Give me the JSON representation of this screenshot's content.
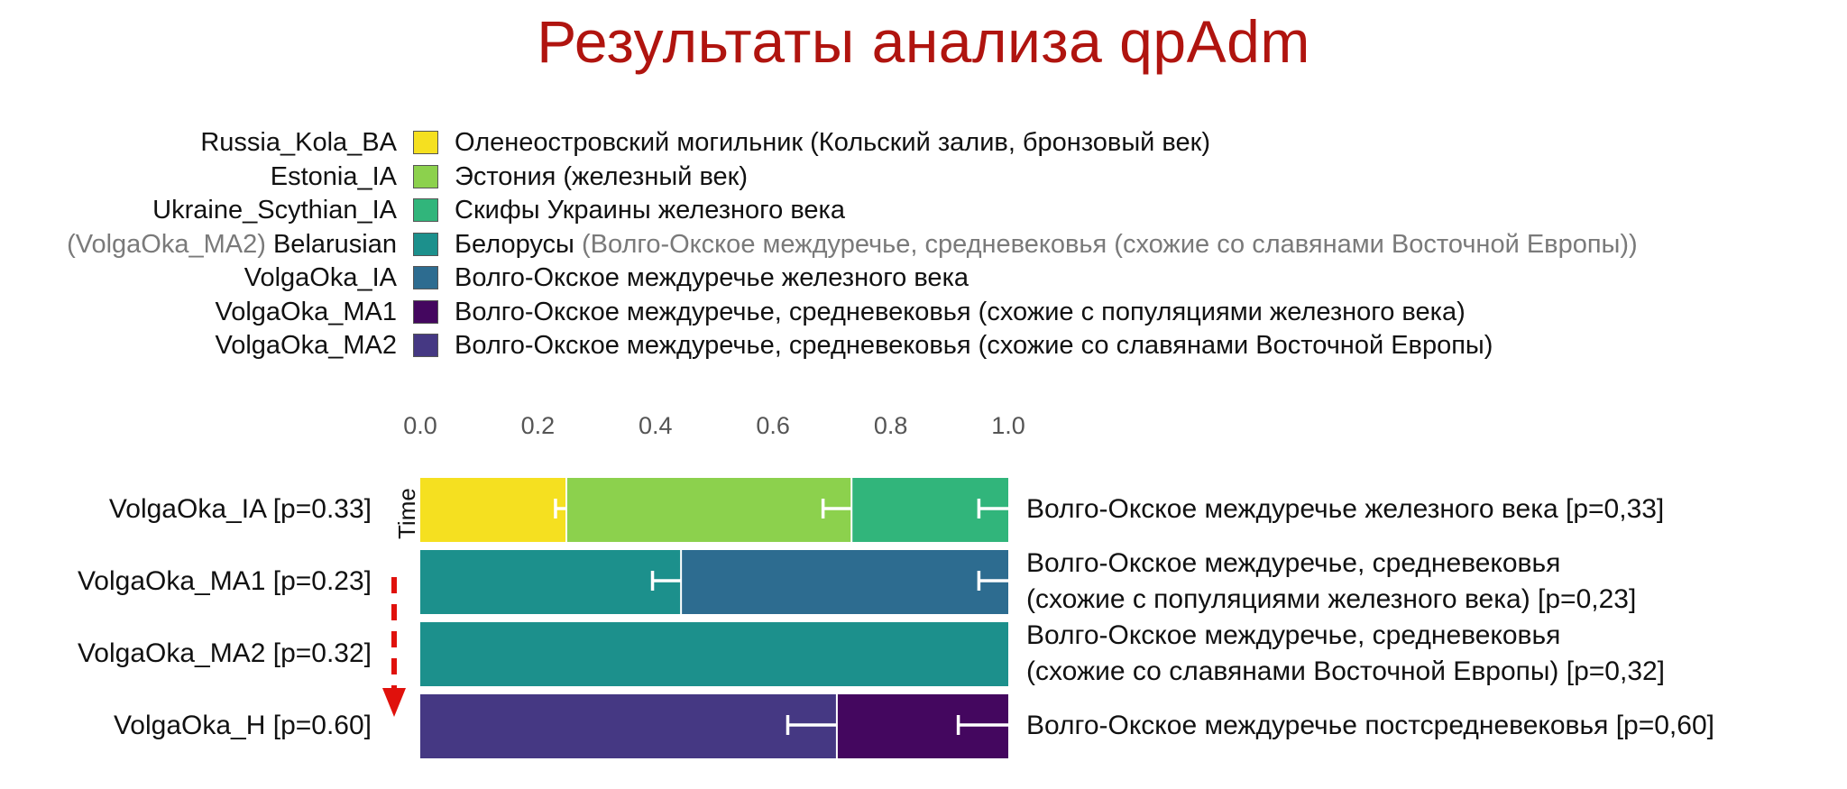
{
  "title": "Результаты анализа qpAdm",
  "legend": [
    {
      "prefix": "",
      "code": "Russia_Kola_BA",
      "color": "#f5e020",
      "desc": "Оленеостровский могильник (Кольский залив, бронзовый век)",
      "extra": ""
    },
    {
      "prefix": "",
      "code": "Estonia_IA",
      "color": "#8cd14d",
      "desc": "Эстония (железный век)",
      "extra": ""
    },
    {
      "prefix": "",
      "code": "Ukraine_Scythian_IA",
      "color": "#31b57b",
      "desc": "Скифы Украины железного века",
      "extra": ""
    },
    {
      "prefix": "(VolgaOka_MA2)",
      "code": "Belarusian",
      "color": "#1c908c",
      "desc": "Белорусы",
      "extra": "(Волго-Окское междуречье, средневековья (схожие со славянами Восточной Европы))"
    },
    {
      "prefix": "",
      "code": "VolgaOka_IA",
      "color": "#2d6c90",
      "desc": "Волго-Окское междуречье железного века",
      "extra": ""
    },
    {
      "prefix": "",
      "code": "VolgaOka_MA1",
      "color": "#44075f",
      "desc": "Волго-Окское междуречье, средневековья (схожие с популяциями железного века)",
      "extra": ""
    },
    {
      "prefix": "",
      "code": "VolgaOka_MA2",
      "color": "#453883",
      "desc": "Волго-Окское междуречье, средневековья (схожие со славянами Восточной Европы)",
      "extra": ""
    }
  ],
  "time_label": "Time",
  "chart_data": {
    "type": "bar",
    "orientation": "horizontal-stacked",
    "xlim": [
      0,
      1.0
    ],
    "ticks": [
      "0.0",
      "0.2",
      "0.4",
      "0.6",
      "0.8",
      "1.0"
    ],
    "tick_values": [
      0,
      0.2,
      0.4,
      0.6,
      0.8,
      1.0
    ],
    "rows": [
      {
        "label": "VolgaOka_IA [p=0.33]",
        "description": [
          "Волго-Окское междуречье железного века [p=0,33]"
        ],
        "segments": [
          {
            "source": "Russia_Kola_BA",
            "value": 0.25,
            "error": 0.02
          },
          {
            "source": "Estonia_IA",
            "value": 0.485,
            "error": 0.05
          },
          {
            "source": "Ukraine_Scythian_IA",
            "value": 0.265,
            "error": 0.05
          }
        ]
      },
      {
        "label": "VolgaOka_MA1 [p=0.23]",
        "description": [
          "Волго-Окское междуречье, средневековья",
          "(схожие с популяциями железного века) [p=0,23]"
        ],
        "segments": [
          {
            "source": "Belarusian",
            "value": 0.445,
            "error": 0.05
          },
          {
            "source": "VolgaOka_IA",
            "value": 0.555,
            "error": 0.05
          }
        ]
      },
      {
        "label": "VolgaOka_MA2 [p=0.32]",
        "description": [
          "Волго-Окское междуречье, средневековья",
          "(схожие со славянами Восточной Европы) [p=0,32]"
        ],
        "segments": [
          {
            "source": "Belarusian",
            "value": 1.0,
            "error": 0
          }
        ]
      },
      {
        "label": "VolgaOka_H [p=0.60]",
        "description": [
          "Волго-Окское междуречье постсредневековья [p=0,60]"
        ],
        "segments": [
          {
            "source": "VolgaOka_MA2",
            "value": 0.71,
            "error": 0.085
          },
          {
            "source": "VolgaOka_MA1",
            "value": 0.29,
            "error": 0.085
          }
        ]
      }
    ]
  }
}
